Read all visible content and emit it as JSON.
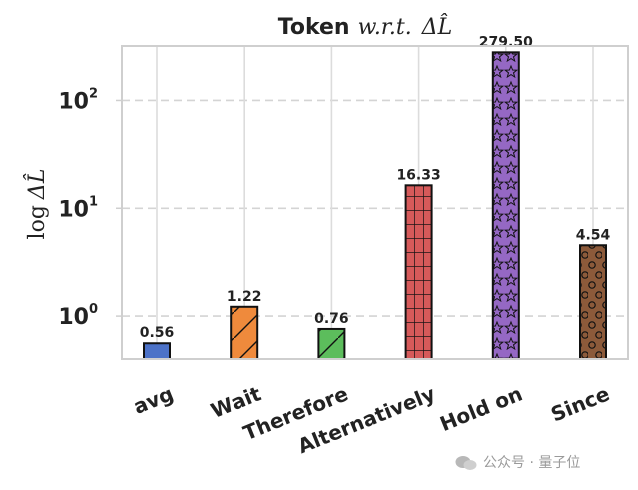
{
  "chart_data": {
    "type": "bar",
    "title": "Token w.r.t. ΔL̂",
    "title_parts": {
      "word": "Token",
      "math": "w.r.t.",
      "delta": "ΔL̂"
    },
    "ylabel": "log ΔL̂",
    "ylabel_parts": {
      "log": "log",
      "delta": "ΔL̂"
    },
    "yscale": "log",
    "ylim": [
      0.4,
      320
    ],
    "yticks": [
      {
        "value": 1,
        "base": "10",
        "exp": "0"
      },
      {
        "value": 10,
        "base": "10",
        "exp": "1"
      },
      {
        "value": 100,
        "base": "10",
        "exp": "2"
      }
    ],
    "grid": true,
    "categories": [
      "avg",
      "Wait",
      "Therefore",
      "Alternatively",
      "Hold on",
      "Since"
    ],
    "values": [
      0.56,
      1.22,
      0.76,
      16.33,
      279.5,
      4.54
    ],
    "value_labels": [
      "0.56",
      "1.22",
      "0.76",
      "16.33",
      "279.50",
      "4.54"
    ],
    "colors": [
      "#4c72c8",
      "#ef8a3c",
      "#5cbd5c",
      "#d65a5a",
      "#9568c4",
      "#8c5a3a"
    ],
    "hatches": [
      "none",
      "diagonal",
      "diagonal",
      "grid",
      "star",
      "circle"
    ]
  },
  "watermark": {
    "text": "公众号 · 量子位"
  }
}
